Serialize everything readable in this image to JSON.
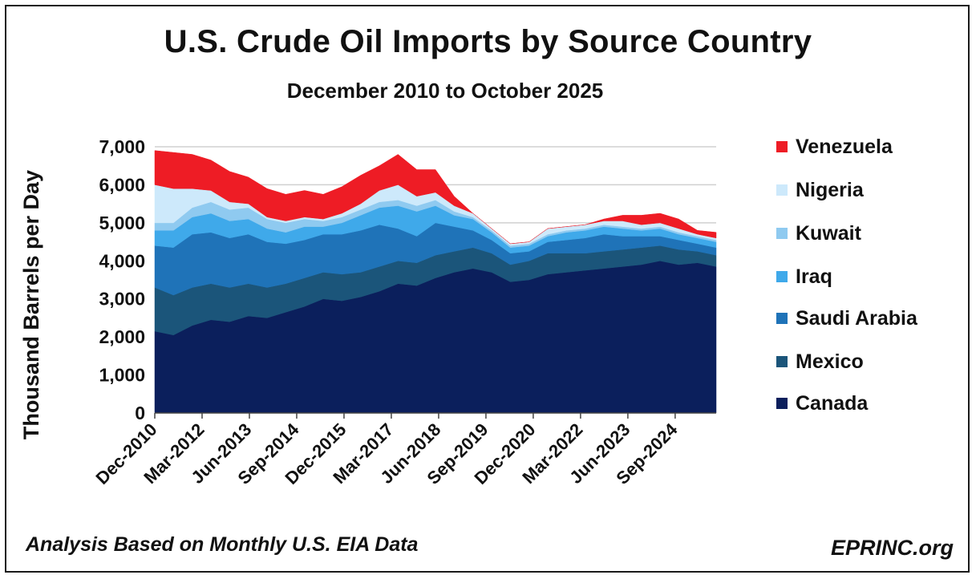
{
  "chart_data": {
    "type": "area",
    "stacked": true,
    "title": "U.S. Crude Oil Imports by Source Country",
    "subtitle": "December 2010 to October 2025",
    "ylabel": "Thousand Barrels per Day",
    "xlabel": "",
    "ylim": [
      0,
      7000
    ],
    "yticks": [
      0,
      1000,
      2000,
      3000,
      4000,
      5000,
      6000,
      7000
    ],
    "ytick_labels": [
      "0",
      "1,000",
      "2,000",
      "3,000",
      "4,000",
      "5,000",
      "6,000",
      "7,000"
    ],
    "grid": "horizontal",
    "legend_position": "right",
    "x_start": "Dec-2010",
    "x_end": "Oct-2025",
    "xtick_labels": [
      "Dec-2010",
      "Mar-2012",
      "Jun-2013",
      "Sep-2014",
      "Dec-2015",
      "Mar-2017",
      "Jun-2018",
      "Sep-2019",
      "Dec-2020",
      "Mar-2022",
      "Jun-2023",
      "Sep-2024"
    ],
    "x": [
      "Dec-2010",
      "Jun-2011",
      "Dec-2011",
      "Jun-2012",
      "Dec-2012",
      "Jun-2013",
      "Dec-2013",
      "Jun-2014",
      "Dec-2014",
      "Jun-2015",
      "Dec-2015",
      "Jun-2016",
      "Dec-2016",
      "Jun-2017",
      "Dec-2017",
      "Jun-2018",
      "Dec-2018",
      "Jun-2019",
      "Dec-2019",
      "Jun-2020",
      "Dec-2020",
      "Jun-2021",
      "Dec-2021",
      "Jun-2022",
      "Dec-2022",
      "Jun-2023",
      "Dec-2023",
      "Jun-2024",
      "Dec-2024",
      "Jun-2025",
      "Oct-2025"
    ],
    "series": [
      {
        "name": "Canada",
        "color": "#0b1f5c",
        "values": [
          2150,
          2050,
          2300,
          2450,
          2400,
          2550,
          2500,
          2650,
          2800,
          3000,
          2950,
          3050,
          3200,
          3400,
          3350,
          3550,
          3700,
          3800,
          3700,
          3450,
          3500,
          3650,
          3700,
          3750,
          3800,
          3850,
          3900,
          4000,
          3900,
          3950,
          3850
        ]
      },
      {
        "name": "Mexico",
        "color": "#1b557a",
        "values": [
          1150,
          1050,
          1000,
          950,
          900,
          850,
          800,
          750,
          750,
          700,
          700,
          650,
          650,
          600,
          600,
          600,
          550,
          550,
          500,
          450,
          500,
          550,
          500,
          450,
          450,
          450,
          450,
          400,
          400,
          300,
          300
        ]
      },
      {
        "name": "Saudi Arabia",
        "color": "#1f73b8",
        "values": [
          1100,
          1250,
          1400,
          1350,
          1300,
          1300,
          1200,
          1050,
          1000,
          1000,
          1050,
          1100,
          1100,
          850,
          700,
          850,
          650,
          450,
          350,
          300,
          250,
          300,
          350,
          400,
          450,
          350,
          300,
          250,
          250,
          200,
          200
        ]
      },
      {
        "name": "Iraq",
        "color": "#3fa9ea",
        "values": [
          400,
          450,
          450,
          500,
          450,
          400,
          350,
          300,
          350,
          200,
          300,
          400,
          450,
          600,
          650,
          450,
          300,
          300,
          200,
          150,
          150,
          150,
          200,
          200,
          200,
          200,
          150,
          200,
          150,
          150,
          150
        ]
      },
      {
        "name": "Kuwait",
        "color": "#8fcaf0",
        "values": [
          200,
          200,
          250,
          300,
          300,
          300,
          250,
          250,
          200,
          150,
          150,
          150,
          150,
          150,
          150,
          150,
          100,
          50,
          50,
          50,
          50,
          50,
          50,
          50,
          50,
          50,
          50,
          50,
          50,
          50,
          50
        ]
      },
      {
        "name": "Nigeria",
        "color": "#cde9fb",
        "values": [
          1000,
          900,
          500,
          300,
          200,
          100,
          50,
          50,
          50,
          50,
          100,
          150,
          300,
          400,
          250,
          200,
          150,
          100,
          50,
          50,
          50,
          150,
          100,
          100,
          100,
          150,
          100,
          100,
          100,
          50,
          50
        ]
      },
      {
        "name": "Venezuela",
        "color": "#ee1c25",
        "values": [
          900,
          950,
          900,
          800,
          800,
          700,
          750,
          700,
          700,
          650,
          700,
          750,
          650,
          800,
          700,
          600,
          250,
          0,
          0,
          0,
          0,
          0,
          0,
          0,
          50,
          150,
          250,
          250,
          250,
          100,
          150
        ]
      }
    ]
  },
  "legend": {
    "items": [
      "Venezuela",
      "Nigeria",
      "Kuwait",
      "Iraq",
      "Saudi Arabia",
      "Mexico",
      "Canada"
    ]
  },
  "footer": {
    "note": "Analysis Based on Monthly U.S. EIA Data",
    "source": "EPRINC.org"
  }
}
